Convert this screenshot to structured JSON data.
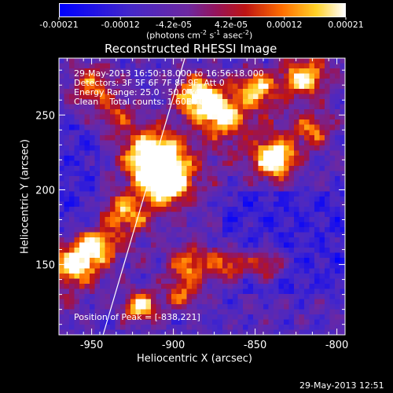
{
  "colorbar": {
    "tick_labels": [
      "-0.00021",
      "-0.00012",
      "-4.2e-05",
      "4.2e-05",
      "0.00012",
      "0.00021"
    ],
    "tick_values": [
      -0.00021,
      -0.00012,
      -4.2e-05,
      4.2e-05,
      0.00012,
      0.00021
    ],
    "range": [
      -0.00021,
      0.00021
    ],
    "unit_label_main": "(photons cm",
    "unit_sup1": "-2",
    "unit_mid": " s",
    "unit_sup2": "-1",
    "unit_end": " asec",
    "unit_sup3": "-2",
    "unit_close": ")"
  },
  "chart_data": {
    "type": "heatmap",
    "title": "Reconstructed RHESSI Image",
    "xlabel": "Heliocentric X (arcsec)",
    "ylabel": "Heliocentric Y (arcsec)",
    "xlim": [
      -970,
      -795
    ],
    "ylim": [
      103,
      288
    ],
    "x_ticks": [
      -950,
      -900,
      -850,
      -800
    ],
    "y_ticks": [
      150,
      200,
      250
    ],
    "x_tick_labels": [
      "-950",
      "-900",
      "-850",
      "-800"
    ],
    "y_tick_labels": [
      "150",
      "200",
      "250"
    ],
    "colormap": "blue-purple-red-yellow-white",
    "peak": [
      -838,
      221
    ],
    "limb_line": [
      [
        -943,
        103
      ],
      [
        -893,
        288
      ]
    ],
    "info_lines": [
      "29-May-2013 16:50:18.000 to 16:56:18.000",
      "Detectors: 3F 5F 6F 7F 8F 9F, Att 0",
      "Energy Range: 25.0 - 50.0 keV",
      "Clean    Total counts: 1.60E+04"
    ],
    "peak_label": "Position of Peak = [-838,221]"
  },
  "footer": {
    "timestamp": "29-May-2013 12:51"
  },
  "colors": {
    "background": "#000000",
    "text": "#ffffff"
  }
}
